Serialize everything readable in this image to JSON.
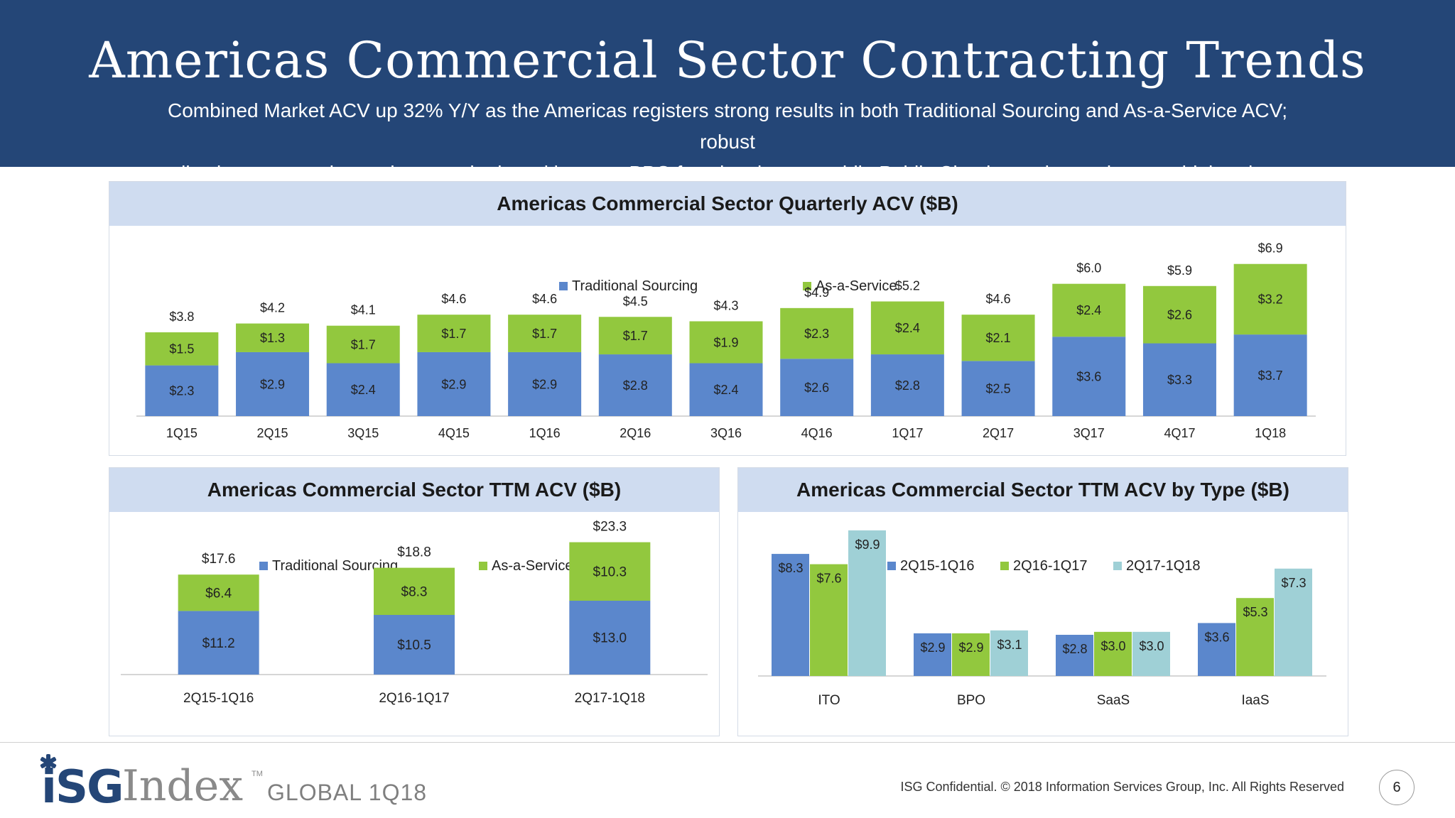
{
  "header": {
    "title": "Americas Commercial Sector Contracting Trends",
    "subtitle_line1": "Combined Market ACV up 32% Y/Y as the Americas registers strong results in both Traditional Sourcing and As-a-Service ACV; robust",
    "subtitle_line2": "applications contracting and across the board in many BPO functional areas, while Public Cloud growth remains on a high trajectory"
  },
  "colors": {
    "blue": "#5b87cc",
    "green": "#92c83e",
    "teal": "#9fd0d6",
    "header_bg": "#244677"
  },
  "chart_data": [
    {
      "id": "quarterly",
      "type": "bar",
      "stacked": true,
      "title": "Americas Commercial Sector Quarterly ACV ($B)",
      "categories": [
        "1Q15",
        "2Q15",
        "3Q15",
        "4Q15",
        "1Q16",
        "2Q16",
        "3Q16",
        "4Q16",
        "1Q17",
        "2Q17",
        "3Q17",
        "4Q17",
        "1Q18"
      ],
      "series": [
        {
          "name": "Traditional Sourcing",
          "color": "#5b87cc",
          "values": [
            2.3,
            2.9,
            2.4,
            2.9,
            2.9,
            2.8,
            2.4,
            2.6,
            2.8,
            2.5,
            3.6,
            3.3,
            3.7
          ],
          "labels": [
            "$2.3",
            "$2.9",
            "$2.4",
            "$2.9",
            "$2.9",
            "$2.8",
            "$2.4",
            "$2.6",
            "$2.8",
            "$2.5",
            "$3.6",
            "$3.3",
            "$3.7"
          ]
        },
        {
          "name": "As-a-Service",
          "color": "#92c83e",
          "values": [
            1.5,
            1.3,
            1.7,
            1.7,
            1.7,
            1.7,
            1.9,
            2.3,
            2.4,
            2.1,
            2.4,
            2.6,
            3.2
          ],
          "labels": [
            "$1.5",
            "$1.3",
            "$1.7",
            "$1.7",
            "$1.7",
            "$1.7",
            "$1.9",
            "$2.3",
            "$2.4",
            "$2.1",
            "$2.4",
            "$2.6",
            "$3.2"
          ]
        }
      ],
      "totals": [
        3.8,
        4.2,
        4.1,
        4.6,
        4.6,
        4.5,
        4.3,
        4.9,
        5.2,
        4.6,
        6.0,
        5.9,
        6.9
      ],
      "total_labels": [
        "$3.8",
        "$4.2",
        "$4.1",
        "$4.6",
        "$4.6",
        "$4.5",
        "$4.3",
        "$4.9",
        "$5.2",
        "$4.6",
        "$6.0",
        "$5.9",
        "$6.9"
      ],
      "ylim": [
        0,
        7.6
      ],
      "legend": "top-center",
      "grid": false
    },
    {
      "id": "ttm",
      "type": "bar",
      "stacked": true,
      "title": "Americas Commercial Sector TTM ACV ($B)",
      "categories": [
        "2Q15-1Q16",
        "2Q16-1Q17",
        "2Q17-1Q18"
      ],
      "series": [
        {
          "name": "Traditional Sourcing",
          "color": "#5b87cc",
          "values": [
            11.2,
            10.5,
            13.0
          ],
          "labels": [
            "$11.2",
            "$10.5",
            "$13.0"
          ]
        },
        {
          "name": "As-a-Service",
          "color": "#92c83e",
          "values": [
            6.4,
            8.3,
            10.3
          ],
          "labels": [
            "$6.4",
            "$8.3",
            "$10.3"
          ]
        }
      ],
      "totals": [
        17.6,
        18.8,
        23.3
      ],
      "total_labels": [
        "$17.6",
        "$18.8",
        "$23.3"
      ],
      "ylim": [
        0,
        26
      ],
      "legend": "top-center",
      "grid": false
    },
    {
      "id": "bytype",
      "type": "bar",
      "stacked": false,
      "title": "Americas Commercial Sector TTM ACV by Type ($B)",
      "categories": [
        "ITO",
        "BPO",
        "SaaS",
        "IaaS"
      ],
      "series": [
        {
          "name": "2Q15-1Q16",
          "color": "#5b87cc",
          "values": [
            8.3,
            2.9,
            2.8,
            3.6
          ],
          "labels": [
            "$8.3",
            "$2.9",
            "$2.8",
            "$3.6"
          ]
        },
        {
          "name": "2Q16-1Q17",
          "color": "#92c83e",
          "values": [
            7.6,
            2.9,
            3.0,
            5.3
          ],
          "labels": [
            "$7.6",
            "$2.9",
            "$3.0",
            "$5.3"
          ]
        },
        {
          "name": "2Q17-1Q18",
          "color": "#9fd0d6",
          "values": [
            9.9,
            3.1,
            3.0,
            7.3
          ],
          "labels": [
            "$9.9",
            "$3.1",
            "$3.0",
            "$7.3"
          ]
        }
      ],
      "ylim": [
        0,
        11.2
      ],
      "legend": "top-center",
      "grid": false
    }
  ],
  "footer": {
    "logo_isg": "iSG",
    "logo_index": "Index",
    "logo_tm": "TM",
    "edition": "GLOBAL 1Q18",
    "confidential": "ISG Confidential. © 2018 Information Services Group, Inc.  All Rights Reserved",
    "page_number": "6"
  }
}
